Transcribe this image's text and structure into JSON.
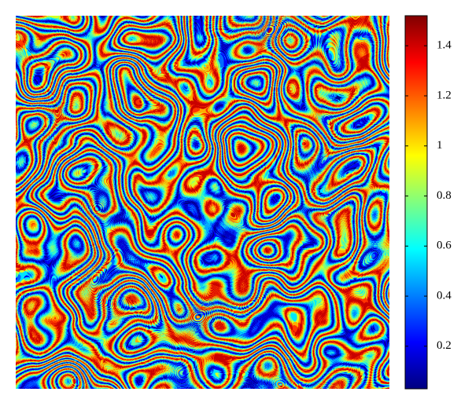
{
  "chart_data": {
    "type": "heatmap",
    "colorbar": {
      "lim": [
        0.03,
        1.52
      ],
      "ticks": [
        0.2,
        0.4,
        0.6,
        0.8,
        1,
        1.2,
        1.4
      ],
      "colormap": "jet"
    }
  }
}
